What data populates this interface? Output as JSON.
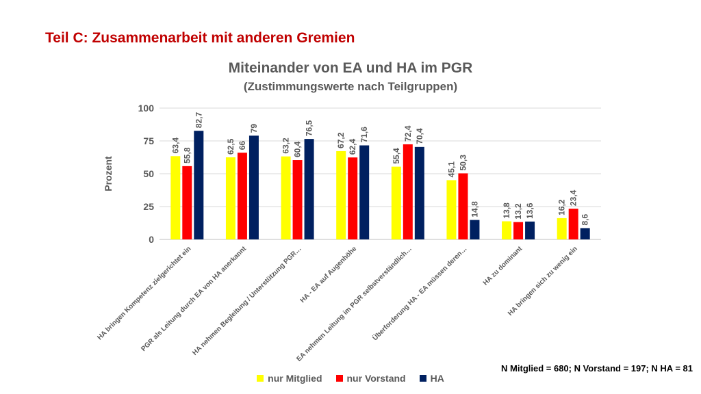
{
  "slide_title": "Teil C: Zusammenarbeit mit anderen Gremien",
  "note": "N Mitglied = 680; N Vorstand = 197; N HA = 81",
  "chart_data": {
    "type": "bar",
    "title": "Miteinander von EA und HA im PGR",
    "subtitle": "(Zustimmungswerte nach Teilgruppen)",
    "xlabel": "",
    "ylabel": "Prozent",
    "ylim": [
      0,
      100
    ],
    "yticks": [
      0,
      25,
      50,
      75,
      100
    ],
    "grid": true,
    "legend_position": "bottom",
    "categories": [
      "HA bringen Kompetenz zielgerichtet ein",
      "PGR als Leitung durch EA von HA anerkannt",
      "HA nehmen Begleitung / Unterstützung PGR…",
      "HA - EA auf Augenhöhe",
      "EA nehmen Leitung im PGR selbstverständlich…",
      "Überforderung HA - EA müssen deren…",
      "HA zu dominant",
      "HA bringen sich zu wenig ein"
    ],
    "series": [
      {
        "name": "nur Mitglied",
        "color": "#ffff00",
        "values": [
          63.4,
          62.5,
          63.2,
          67.2,
          55.4,
          45.1,
          13.8,
          16.2
        ],
        "labels": [
          "63,4",
          "62,5",
          "63,2",
          "67,2",
          "55,4",
          "45,1",
          "13,8",
          "16,2"
        ]
      },
      {
        "name": "nur Vorstand",
        "color": "#ff0000",
        "values": [
          55.8,
          66,
          60.4,
          62.4,
          72.4,
          50.3,
          13.2,
          23.4
        ],
        "labels": [
          "55,8",
          "66",
          "60,4",
          "62,4",
          "72,4",
          "50,3",
          "13,2",
          "23,4"
        ]
      },
      {
        "name": "HA",
        "color": "#002060",
        "values": [
          82.7,
          79,
          76.5,
          71.6,
          70.4,
          14.8,
          13.6,
          8.6
        ],
        "labels": [
          "82,7",
          "79",
          "76,5",
          "71,6",
          "70,4",
          "14,8",
          "13,6",
          "8,6"
        ]
      }
    ]
  }
}
